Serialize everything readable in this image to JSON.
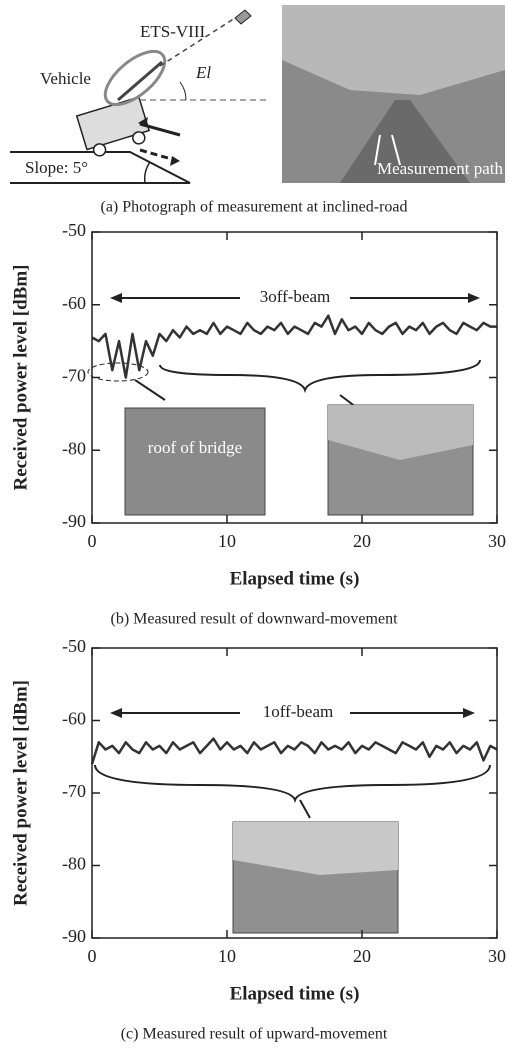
{
  "figure_a": {
    "satellite": "ETS-VIII",
    "vehicle": "Vehicle",
    "elevation": "El",
    "slope": "Slope: 5°",
    "path": "Measurement path",
    "caption": "(a) Photograph of measurement at inclined-road"
  },
  "chart_data": [
    {
      "type": "line",
      "caption": "(b) Measured result of downward-movement",
      "xlabel": "Elapsed time (s)",
      "ylabel": "Received power level [dBm]",
      "annotations": [
        "3off-beam",
        "roof of bridge"
      ],
      "color": "#333333",
      "xlim": [
        0,
        30
      ],
      "xticks": [
        0,
        10,
        20,
        30
      ],
      "ylim": [
        -90,
        -50
      ],
      "yticks": [
        -50,
        -60,
        -70,
        -80,
        -90
      ],
      "x": [
        0,
        0.5,
        1,
        1.5,
        2,
        2.5,
        3,
        3.5,
        4,
        4.5,
        5,
        5.5,
        6,
        6.5,
        7,
        7.5,
        8,
        8.5,
        9,
        9.5,
        10,
        10.5,
        11,
        11.5,
        12,
        12.5,
        13,
        13.5,
        14,
        14.5,
        15,
        15.5,
        16,
        16.5,
        17,
        17.5,
        18,
        18.5,
        19,
        19.5,
        20,
        20.5,
        21,
        21.5,
        22,
        22.5,
        23,
        23.5,
        24,
        24.5,
        25,
        25.5,
        26,
        26.5,
        27,
        27.5,
        28,
        28.5,
        29,
        29.5,
        30
      ],
      "values": [
        -64.5,
        -65,
        -64,
        -69,
        -65,
        -70,
        -64,
        -69,
        -65,
        -67,
        -64,
        -65,
        -63.5,
        -64.5,
        -63,
        -64,
        -63.5,
        -64,
        -62.5,
        -64,
        -63,
        -63.5,
        -64,
        -62.5,
        -63.5,
        -64,
        -63,
        -63.5,
        -62.5,
        -64,
        -63,
        -63.5,
        -64,
        -62.5,
        -63,
        -61.5,
        -64,
        -62,
        -63.5,
        -63,
        -64,
        -62.5,
        -63.5,
        -64,
        -63,
        -62.5,
        -64,
        -63,
        -63.5,
        -62.5,
        -64,
        -63,
        -62.5,
        -63.5,
        -64,
        -62.5,
        -63,
        -63.5,
        -62.5,
        -63,
        -63
      ]
    },
    {
      "type": "line",
      "caption": "(c) Measured result of upward-movement",
      "xlabel": "Elapsed time (s)",
      "ylabel": "Received power level [dBm]",
      "annotations": [
        "1off-beam"
      ],
      "color": "#333333",
      "xlim": [
        0,
        30
      ],
      "xticks": [
        0,
        10,
        20,
        30
      ],
      "ylim": [
        -90,
        -50
      ],
      "yticks": [
        -50,
        -60,
        -70,
        -80,
        -90
      ],
      "x": [
        0,
        0.5,
        1,
        1.5,
        2,
        2.5,
        3,
        3.5,
        4,
        4.5,
        5,
        5.5,
        6,
        6.5,
        7,
        7.5,
        8,
        8.5,
        9,
        9.5,
        10,
        10.5,
        11,
        11.5,
        12,
        12.5,
        13,
        13.5,
        14,
        14.5,
        15,
        15.5,
        16,
        16.5,
        17,
        17.5,
        18,
        18.5,
        19,
        19.5,
        20,
        20.5,
        21,
        21.5,
        22,
        22.5,
        23,
        23.5,
        24,
        24.5,
        25,
        25.5,
        26,
        26.5,
        27,
        27.5,
        28,
        28.5,
        29,
        29.5,
        30
      ],
      "values": [
        -66,
        -63,
        -64,
        -63.5,
        -64.5,
        -63,
        -64,
        -64.5,
        -63,
        -64,
        -63.5,
        -64.5,
        -63,
        -64,
        -63.5,
        -63,
        -64.5,
        -63.5,
        -62.5,
        -64,
        -63,
        -64,
        -63.5,
        -64.5,
        -63,
        -64,
        -63.5,
        -63,
        -64.5,
        -63.5,
        -64,
        -63,
        -63.5,
        -64.5,
        -63,
        -64,
        -63.5,
        -64,
        -63,
        -64.5,
        -63.5,
        -64,
        -63,
        -63.5,
        -64,
        -64.5,
        -63,
        -63.5,
        -64,
        -63,
        -65,
        -63.5,
        -64,
        -63,
        -64.5,
        -63.5,
        -64,
        -63,
        -65.5,
        -63.5,
        -64
      ]
    }
  ]
}
